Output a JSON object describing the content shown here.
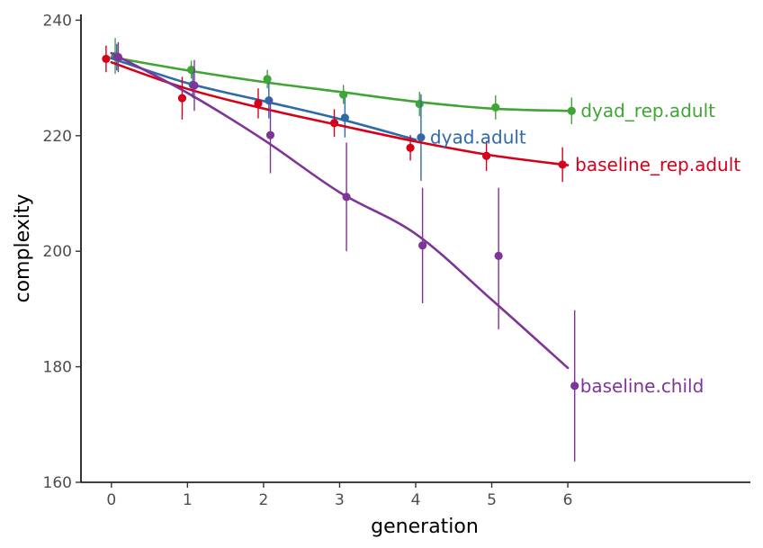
{
  "chart_data": {
    "type": "line",
    "xlabel": "generation",
    "ylabel": "complexity",
    "xlim": [
      -0.4,
      8.4
    ],
    "ylim": [
      160,
      241
    ],
    "x_ticks": [
      "0",
      "1",
      "2",
      "3",
      "4",
      "5",
      "6"
    ],
    "y_ticks": [
      "160",
      "180",
      "200",
      "220",
      "240"
    ],
    "grid": false,
    "legend": "none (series labelled at line ends)",
    "series": [
      {
        "name": "dyad_rep.adult",
        "color": "#3fa535",
        "points": [
          {
            "x": 0.05,
            "y": 233.8,
            "lo": 230.7,
            "hi": 236.9
          },
          {
            "x": 1.05,
            "y": 231.4,
            "lo": 229.9,
            "hi": 233.0
          },
          {
            "x": 2.05,
            "y": 229.8,
            "lo": 228.2,
            "hi": 231.4
          },
          {
            "x": 3.05,
            "y": 227.1,
            "lo": 225.5,
            "hi": 228.8
          },
          {
            "x": 4.05,
            "y": 225.5,
            "lo": 223.4,
            "hi": 227.6
          },
          {
            "x": 5.05,
            "y": 224.9,
            "lo": 222.8,
            "hi": 227.0
          },
          {
            "x": 6.05,
            "y": 224.3,
            "lo": 222.0,
            "hi": 226.6
          }
        ],
        "fit": [
          [
            0,
            233.6
          ],
          [
            1,
            231.3
          ],
          [
            2,
            229.3
          ],
          [
            3,
            227.6
          ],
          [
            4,
            225.9
          ],
          [
            5,
            224.7
          ],
          [
            6,
            224.3
          ]
        ]
      },
      {
        "name": "dyad.adult",
        "color": "#2e6aa8",
        "points": [
          {
            "x": 0.07,
            "y": 233.6,
            "lo": 231.3,
            "hi": 235.9
          },
          {
            "x": 1.07,
            "y": 228.8,
            "lo": 226.5,
            "hi": 231.1
          },
          {
            "x": 2.07,
            "y": 226.1,
            "lo": 223.0,
            "hi": 229.2
          },
          {
            "x": 3.07,
            "y": 223.1,
            "lo": 219.7,
            "hi": 226.5
          },
          {
            "x": 4.07,
            "y": 219.7,
            "lo": 212.2,
            "hi": 227.2
          }
        ],
        "fit": [
          [
            0,
            233.4
          ],
          [
            1,
            229.1
          ],
          [
            2,
            226.0
          ],
          [
            3,
            222.9
          ],
          [
            4,
            219.3
          ]
        ]
      },
      {
        "name": "baseline_rep.adult",
        "color": "#d7001a",
        "points": [
          {
            "x": -0.07,
            "y": 233.3,
            "lo": 231.0,
            "hi": 235.6
          },
          {
            "x": 0.93,
            "y": 226.5,
            "lo": 222.8,
            "hi": 230.2
          },
          {
            "x": 1.93,
            "y": 225.6,
            "lo": 223.0,
            "hi": 228.2
          },
          {
            "x": 2.93,
            "y": 222.2,
            "lo": 219.8,
            "hi": 224.6
          },
          {
            "x": 3.93,
            "y": 217.9,
            "lo": 215.7,
            "hi": 220.1
          },
          {
            "x": 4.93,
            "y": 216.5,
            "lo": 213.9,
            "hi": 219.1
          },
          {
            "x": 5.93,
            "y": 215.0,
            "lo": 212.0,
            "hi": 218.0
          }
        ],
        "fit": [
          [
            0,
            232.7
          ],
          [
            1,
            228.1
          ],
          [
            2,
            224.7
          ],
          [
            3,
            221.8
          ],
          [
            4,
            219.0
          ],
          [
            5,
            216.6
          ],
          [
            6,
            214.9
          ]
        ]
      },
      {
        "name": "baseline.child",
        "color": "#7e3597",
        "points": [
          {
            "x": 0.09,
            "y": 233.6,
            "lo": 231.0,
            "hi": 236.2
          },
          {
            "x": 1.09,
            "y": 228.7,
            "lo": 224.3,
            "hi": 233.1
          },
          {
            "x": 2.09,
            "y": 220.1,
            "lo": 213.5,
            "hi": 226.7
          },
          {
            "x": 3.09,
            "y": 209.4,
            "lo": 200.0,
            "hi": 218.8
          },
          {
            "x": 4.09,
            "y": 201.0,
            "lo": 191.0,
            "hi": 211.0
          },
          {
            "x": 5.09,
            "y": 199.2,
            "lo": 186.5,
            "hi": 211.0
          },
          {
            "x": 6.09,
            "y": 176.7,
            "lo": 163.6,
            "hi": 189.8
          }
        ],
        "fit": [
          [
            0,
            234.3
          ],
          [
            1,
            227.4
          ],
          [
            2,
            219.3
          ],
          [
            3,
            210.2
          ],
          [
            4,
            203.0
          ],
          [
            5,
            191.6
          ],
          [
            6,
            179.8
          ]
        ]
      }
    ]
  }
}
